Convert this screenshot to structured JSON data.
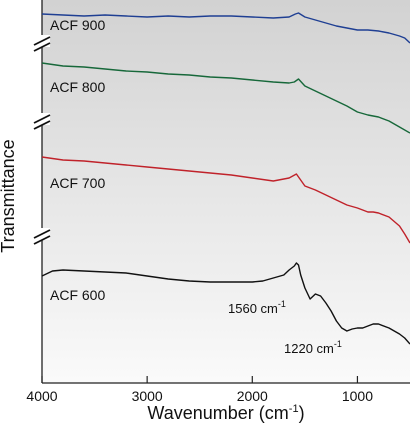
{
  "chart_data": {
    "type": "line",
    "title": "",
    "xlabel_main": "Wavenumber (cm",
    "xlabel_sup": "-1",
    "xlabel_end": ")",
    "ylabel": "Transmittance",
    "xlim": [
      4000,
      500
    ],
    "x_ticks": [
      4000,
      3000,
      2000,
      1000
    ],
    "x_tick_labels": [
      "4000",
      "3000",
      "2000",
      "1000"
    ],
    "grid": false,
    "series": [
      {
        "name": "ACF 900",
        "color": "#1f3f93",
        "points": [
          [
            4000,
            14
          ],
          [
            3800,
            15
          ],
          [
            3600,
            16
          ],
          [
            3400,
            15
          ],
          [
            3200,
            16
          ],
          [
            3000,
            17
          ],
          [
            2800,
            16
          ],
          [
            2600,
            17
          ],
          [
            2400,
            16
          ],
          [
            2200,
            16
          ],
          [
            2000,
            17
          ],
          [
            1800,
            18
          ],
          [
            1650,
            17
          ],
          [
            1590,
            14
          ],
          [
            1560,
            13
          ],
          [
            1500,
            17
          ],
          [
            1400,
            20
          ],
          [
            1300,
            23
          ],
          [
            1200,
            26
          ],
          [
            1100,
            28
          ],
          [
            1000,
            30
          ],
          [
            900,
            30
          ],
          [
            800,
            31
          ],
          [
            700,
            33
          ],
          [
            600,
            36
          ],
          [
            550,
            38
          ],
          [
            500,
            43
          ]
        ]
      },
      {
        "name": "ACF 800",
        "color": "#17683a",
        "points": [
          [
            4000,
            63
          ],
          [
            3800,
            66
          ],
          [
            3600,
            67
          ],
          [
            3400,
            69
          ],
          [
            3200,
            71
          ],
          [
            3000,
            72
          ],
          [
            2800,
            74
          ],
          [
            2600,
            75
          ],
          [
            2400,
            77
          ],
          [
            2200,
            78
          ],
          [
            2000,
            80
          ],
          [
            1800,
            82
          ],
          [
            1650,
            83
          ],
          [
            1600,
            82
          ],
          [
            1560,
            79
          ],
          [
            1500,
            86
          ],
          [
            1400,
            91
          ],
          [
            1300,
            96
          ],
          [
            1200,
            101
          ],
          [
            1100,
            106
          ],
          [
            1000,
            112
          ],
          [
            900,
            115
          ],
          [
            800,
            117
          ],
          [
            700,
            121
          ],
          [
            600,
            127
          ],
          [
            500,
            133
          ]
        ]
      },
      {
        "name": "ACF 700",
        "color": "#c0222a",
        "points": [
          [
            4000,
            157
          ],
          [
            3800,
            160
          ],
          [
            3600,
            161
          ],
          [
            3400,
            163
          ],
          [
            3200,
            165
          ],
          [
            3000,
            167
          ],
          [
            2800,
            169
          ],
          [
            2600,
            171
          ],
          [
            2400,
            173
          ],
          [
            2200,
            175
          ],
          [
            2000,
            178
          ],
          [
            1800,
            181
          ],
          [
            1650,
            178
          ],
          [
            1580,
            174
          ],
          [
            1500,
            186
          ],
          [
            1400,
            190
          ],
          [
            1300,
            195
          ],
          [
            1200,
            200
          ],
          [
            1100,
            205
          ],
          [
            1000,
            208
          ],
          [
            950,
            210
          ],
          [
            900,
            212
          ],
          [
            850,
            212
          ],
          [
            800,
            213
          ],
          [
            700,
            217
          ],
          [
            600,
            226
          ],
          [
            550,
            234
          ],
          [
            500,
            243
          ]
        ]
      },
      {
        "name": "ACF 600",
        "color": "#111111",
        "points": [
          [
            4000,
            276
          ],
          [
            3900,
            271
          ],
          [
            3800,
            270
          ],
          [
            3600,
            271
          ],
          [
            3400,
            272
          ],
          [
            3200,
            273
          ],
          [
            3000,
            276
          ],
          [
            2800,
            279
          ],
          [
            2600,
            281
          ],
          [
            2400,
            282
          ],
          [
            2200,
            282
          ],
          [
            2000,
            282
          ],
          [
            1900,
            281
          ],
          [
            1800,
            278
          ],
          [
            1700,
            275
          ],
          [
            1650,
            270
          ],
          [
            1600,
            266
          ],
          [
            1580,
            263
          ],
          [
            1560,
            265
          ],
          [
            1540,
            275
          ],
          [
            1500,
            288
          ],
          [
            1450,
            299
          ],
          [
            1400,
            294
          ],
          [
            1350,
            296
          ],
          [
            1300,
            303
          ],
          [
            1250,
            311
          ],
          [
            1200,
            321
          ],
          [
            1150,
            328
          ],
          [
            1100,
            331
          ],
          [
            1050,
            329
          ],
          [
            1000,
            328
          ],
          [
            950,
            328
          ],
          [
            900,
            326
          ],
          [
            850,
            324
          ],
          [
            800,
            324
          ],
          [
            700,
            328
          ],
          [
            600,
            334
          ],
          [
            550,
            338
          ],
          [
            500,
            344
          ]
        ]
      }
    ],
    "annotations": [
      {
        "text": "1560 cm",
        "sup": "-1"
      },
      {
        "text": "1220 cm",
        "sup": "-1"
      }
    ]
  }
}
